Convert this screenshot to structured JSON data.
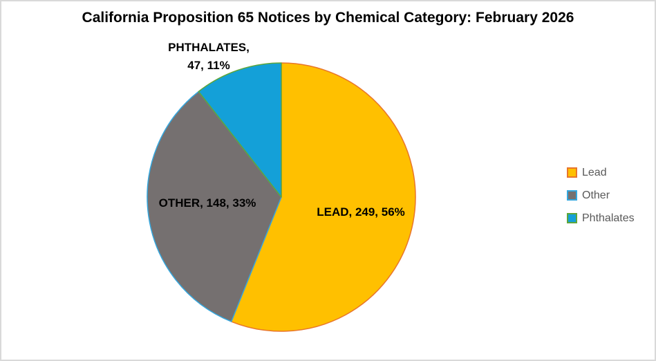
{
  "chart_data": {
    "type": "pie",
    "title": "California Proposition 65 Notices by Chemical Category: February 2026",
    "categories": [
      "Lead",
      "Other",
      "Phthalates"
    ],
    "values": [
      249,
      148,
      47
    ],
    "percents": [
      56,
      33,
      11
    ],
    "slice_colors": [
      "#FFC000",
      "#757070",
      "#14A0D8"
    ],
    "slice_border_colors": [
      "#E8752B",
      "#35A7DE",
      "#5EA63B"
    ],
    "start_angle_deg": 0,
    "direction": "clockwise",
    "legend_position": "right",
    "legend": [
      "Lead",
      "Other",
      "Phthalates"
    ],
    "labels": {
      "lead": "LEAD, 249, 56%",
      "other": "OTHER, 148, 33%",
      "phthalates_line1": "PHTHALATES,",
      "phthalates_line2": "47, 11%"
    },
    "label_color": "#000000",
    "legend_text_color": "#595959",
    "background_color": "#FFFFFF",
    "frame_border_color": "#D9D9D9"
  }
}
